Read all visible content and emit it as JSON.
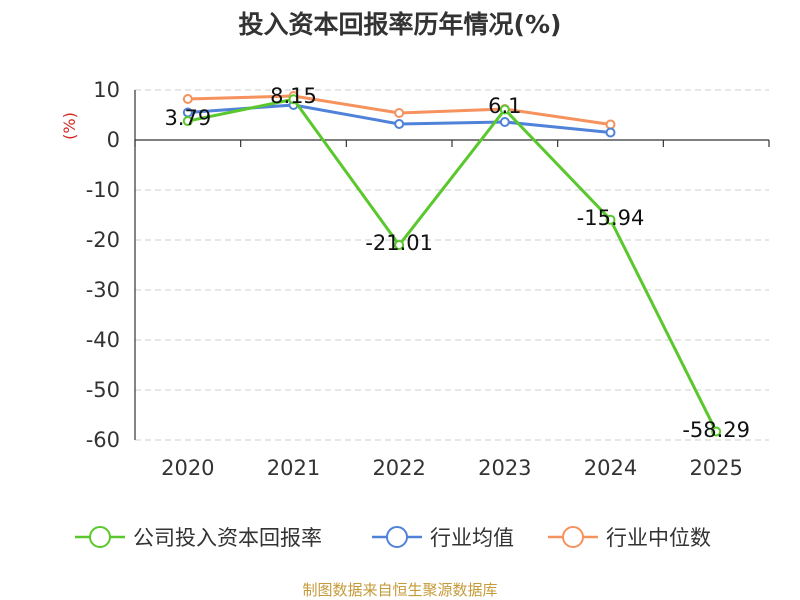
{
  "chart_data": {
    "type": "line",
    "title": "投入资本回报率历年情况(%)",
    "ylabel": "(%)",
    "xlabel": "",
    "categories": [
      "2020",
      "2021",
      "2022",
      "2023",
      "2024",
      "2025"
    ],
    "ylim": [
      -60,
      10
    ],
    "yticks": [
      10,
      0,
      -10,
      -20,
      -30,
      -40,
      -50,
      -60
    ],
    "grid": true,
    "legend_position": "bottom",
    "series": [
      {
        "name": "公司投入资本回报率",
        "color": "#5ac82d",
        "values": [
          3.79,
          8.15,
          -21.01,
          6.1,
          -15.94,
          -58.29
        ],
        "labels": [
          "3.79",
          "8.15",
          "-21.01",
          "6.1",
          "-15.94",
          "-58.29"
        ]
      },
      {
        "name": "行业均值",
        "color": "#4f82d8",
        "values": [
          5.5,
          7.0,
          3.2,
          3.6,
          1.5,
          null
        ]
      },
      {
        "name": "行业中位数",
        "color": "#f5925e",
        "values": [
          8.2,
          8.8,
          5.4,
          6.2,
          3.1,
          null
        ]
      }
    ]
  },
  "footer": {
    "source": "制图数据来自恒生聚源数据库"
  }
}
